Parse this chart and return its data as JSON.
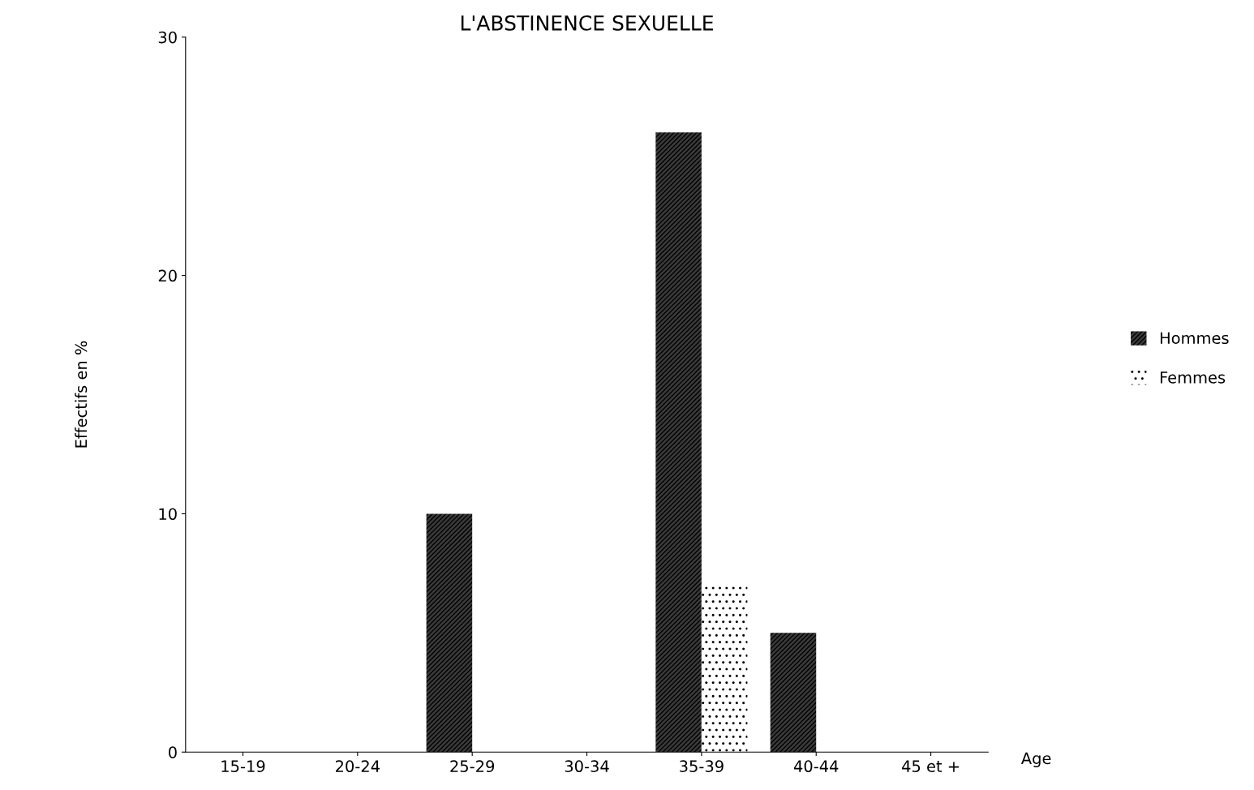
{
  "chart_data": {
    "type": "bar",
    "title": "L'ABSTINENCE SEXUELLE",
    "ylabel": "Effectifs en %",
    "xlabel": "Age",
    "categories": [
      "15-19",
      "20-24",
      "25-29",
      "30-34",
      "35-39",
      "40-44",
      "45 et +"
    ],
    "series": [
      {
        "name": "Hommes",
        "color": "#3a3a3a",
        "values": [
          0,
          0,
          10,
          0,
          26,
          5,
          0
        ]
      },
      {
        "name": "Femmes",
        "color": "#ffffff",
        "values": [
          0,
          0,
          0,
          0,
          7,
          0,
          0
        ]
      }
    ],
    "ylim": [
      0,
      30
    ],
    "yticks": [
      0,
      10,
      20,
      30
    ],
    "grid": false,
    "legend": "right"
  }
}
